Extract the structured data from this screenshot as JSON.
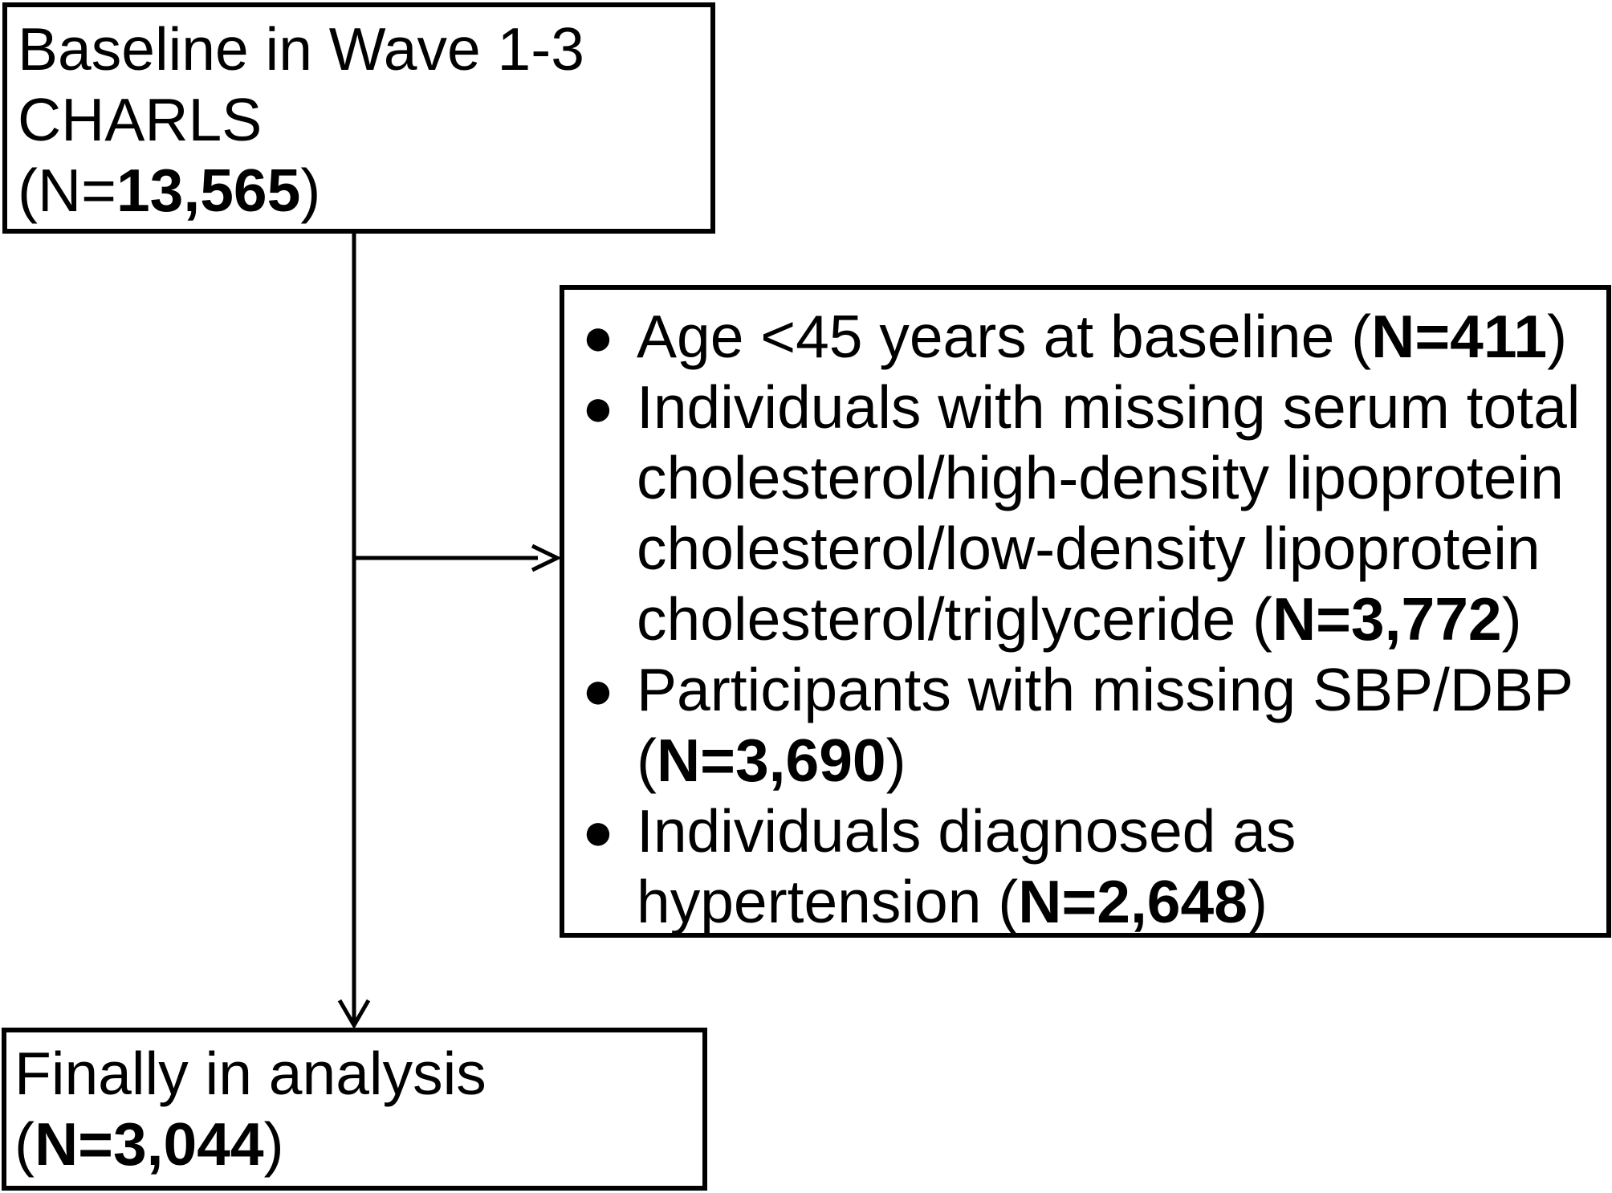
{
  "colors": {
    "background": "#ffffff",
    "text": "#000000",
    "stroke": "#000000"
  },
  "top_box": {
    "line1": "Baseline in Wave 1-3",
    "line2": "CHARLS",
    "n_open": "(N=",
    "n_value": "13,565",
    "n_close": ")"
  },
  "exclusion_box": {
    "bullet_glyph": "●",
    "bullets": [
      {
        "lines": [
          [
            {
              "t": "Age <45 years at baseline ("
            },
            {
              "t": "N=411",
              "b": true
            },
            {
              "t": ")"
            }
          ]
        ]
      },
      {
        "lines": [
          [
            {
              "t": "Individuals with missing serum total"
            }
          ],
          [
            {
              "t": "cholesterol/high-density lipoprotein"
            }
          ],
          [
            {
              "t": "cholesterol/low-density lipoprotein"
            }
          ],
          [
            {
              "t": "cholesterol/triglyceride ("
            },
            {
              "t": "N=3,772",
              "b": true
            },
            {
              "t": ")"
            }
          ]
        ]
      },
      {
        "lines": [
          [
            {
              "t": "Participants with missing SBP/DBP"
            }
          ],
          [
            {
              "t": "("
            },
            {
              "t": "N=3,690",
              "b": true
            },
            {
              "t": ")"
            }
          ]
        ]
      },
      {
        "lines": [
          [
            {
              "t": "Individuals diagnosed as"
            }
          ],
          [
            {
              "t": "hypertension ("
            },
            {
              "t": "N=2,648",
              "b": true
            },
            {
              "t": ")"
            }
          ]
        ]
      }
    ]
  },
  "final_box": {
    "line1": "Finally in analysis",
    "n_open": "(",
    "n_bold": "N=3,044",
    "n_close": ")"
  }
}
